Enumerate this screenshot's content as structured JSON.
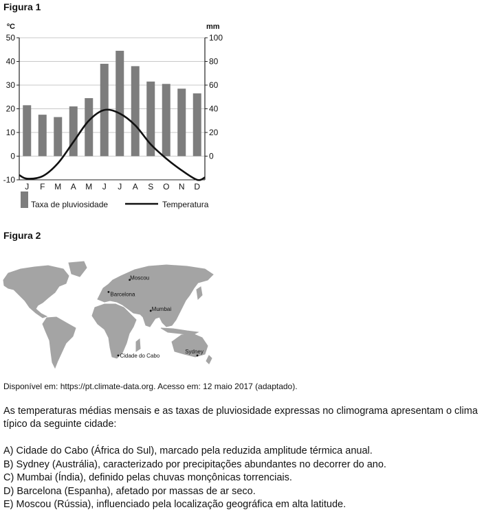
{
  "figure1_label": "Figura 1",
  "figure2_label": "Figura 2",
  "chart_data": {
    "type": "bar",
    "title": "",
    "categories": [
      "J",
      "F",
      "M",
      "A",
      "M",
      "J",
      "J",
      "A",
      "S",
      "O",
      "N",
      "D"
    ],
    "series": [
      {
        "name": "Taxa de pluviosidade",
        "axis": "right",
        "unit": "mm",
        "values": [
          43,
          35,
          33,
          42,
          49,
          78,
          89,
          76,
          63,
          61,
          57,
          53
        ]
      },
      {
        "name": "Temperatura",
        "axis": "left",
        "unit": "°C",
        "kind": "line",
        "values": [
          -9.5,
          -8.5,
          -3,
          6,
          15,
          19.5,
          18,
          13,
          5,
          -1,
          -6,
          -10
        ]
      }
    ],
    "ylabel_left": "ºC",
    "ylabel_right": "mm",
    "ylim_left": [
      -10,
      50
    ],
    "ylim_right": [
      -20,
      100
    ],
    "yticks_left": [
      "50",
      "40",
      "30",
      "20",
      "10",
      "0",
      "-10"
    ],
    "yticks_right": [
      "100",
      "80",
      "60",
      "40",
      "20",
      "0"
    ],
    "legend_placement": "bottom",
    "grid": true,
    "colors": {
      "bars": "#7d7d7d",
      "line": "#111111"
    }
  },
  "map": {
    "cities": [
      {
        "name": "Moscou",
        "lon": 37.6,
        "lat": 55.8
      },
      {
        "name": "Barcelona",
        "lon": 2.2,
        "lat": 41.4
      },
      {
        "name": "Mumbai",
        "lon": 72.9,
        "lat": 19.1
      },
      {
        "name": "Cidade do Cabo",
        "lon": 18.4,
        "lat": -33.9
      },
      {
        "name": "Sydney",
        "lon": 151.2,
        "lat": -33.9
      }
    ],
    "land_color": "#a4a4a4"
  },
  "source_text": "Disponível em: https://pt.climate-data.org. Acesso em: 12 maio 2017 (adaptado).",
  "question": "As temperaturas médias mensais e as taxas de pluviosidade expressas no climograma apresentam o clima típico da seguinte cidade:",
  "options": [
    "A) Cidade do Cabo (África do Sul), marcado pela reduzida amplitude térmica anual.",
    "B) Sydney (Austrália), caracterizado por precipitações abundantes no decorrer do ano.",
    "C) Mumbai (Índia), definido pelas chuvas monçônicas torrenciais.",
    "D) Barcelona (Espanha), afetado por massas de ar seco.",
    "E) Moscou (Rússia), influenciado pela localização geográfica em alta latitude."
  ]
}
